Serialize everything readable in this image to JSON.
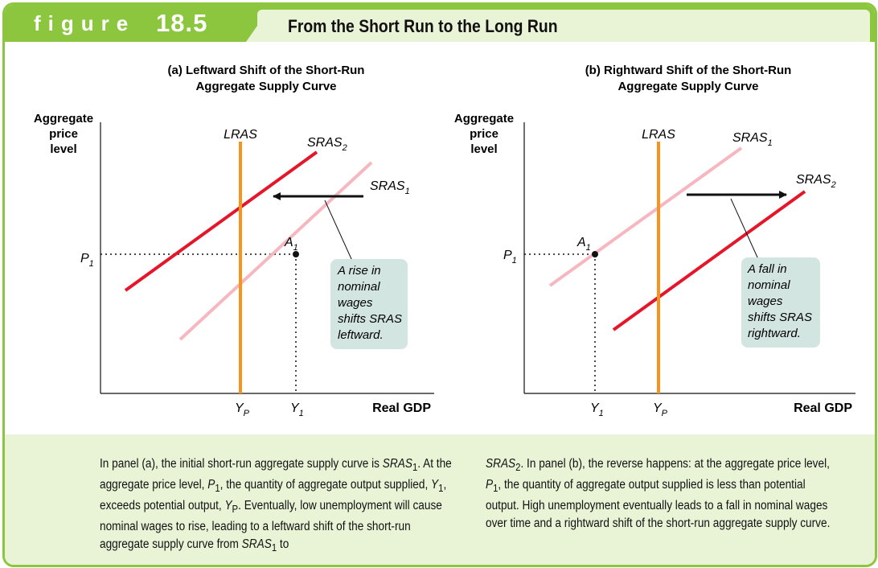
{
  "header": {
    "figure_word": "figure",
    "figure_number": "18.5",
    "title": "From the Short Run to the Long Run"
  },
  "panel_a": {
    "title_line1": "(a) Leftward Shift of the Short-Run",
    "title_line2": "Aggregate Supply Curve",
    "y_axis": [
      "Aggregate",
      "price",
      "level"
    ],
    "x_axis": "Real GDP",
    "lras": "LRAS",
    "sras_shifted": {
      "base": "SRAS",
      "sub": "2"
    },
    "sras_initial": {
      "base": "SRAS",
      "sub": "1"
    },
    "point": {
      "base": "A",
      "sub": "1"
    },
    "price": {
      "base": "P",
      "sub": "1"
    },
    "yp": {
      "base": "Y",
      "sub": "P"
    },
    "y1": {
      "base": "Y",
      "sub": "1"
    },
    "note": [
      "A rise in",
      "nominal",
      "wages",
      "shifts SRAS",
      "leftward."
    ]
  },
  "panel_b": {
    "title_line1": "(b) Rightward Shift of the Short-Run",
    "title_line2": "Aggregate Supply Curve",
    "y_axis": [
      "Aggregate",
      "price",
      "level"
    ],
    "x_axis": "Real GDP",
    "lras": "LRAS",
    "sras_initial": {
      "base": "SRAS",
      "sub": "1"
    },
    "sras_shifted": {
      "base": "SRAS",
      "sub": "2"
    },
    "point": {
      "base": "A",
      "sub": "1"
    },
    "price": {
      "base": "P",
      "sub": "1"
    },
    "y1": {
      "base": "Y",
      "sub": "1"
    },
    "yp": {
      "base": "Y",
      "sub": "P"
    },
    "note": [
      "A fall in",
      "nominal",
      "wages",
      "shifts SRAS",
      "rightward."
    ]
  },
  "colors": {
    "frame_green": "#8cc63f",
    "panel_bg": "#e9f3d6",
    "lras_orange": "#f7941d",
    "sras_red": "#e5162a",
    "sras_pink": "#f6b7c0",
    "note_box": "#d3e5e0"
  },
  "caption": {
    "left": {
      "p1": "In panel (a), the initial short-run aggregate supply curve is ",
      "p1_sras": "SRAS",
      "p1_sub": "1",
      "p1_end": ".",
      "p2": "At the aggregate price level, ",
      "p2_var": "P",
      "p2_sub": "1",
      "p2_mid": ", the quantity of aggregate output supplied, ",
      "p2_var2": "Y",
      "p2_sub2": "1",
      "p2_mid2": ", exceeds potential output, ",
      "p2_var3": "Y",
      "p2_sub3": "P",
      "p2_end": ". Eventually, low unemployment will cause nominal wages to rise, leading to a leftward shift of the short-run aggregate supply curve from ",
      "p2_sras": "SRAS",
      "p2_sras_sub": "1",
      "p2_to": " to"
    },
    "right": {
      "start_sras": "SRAS",
      "start_sub": "2",
      "text1": ". In panel (b), the reverse happens: at the aggregate price level, ",
      "var": "P",
      "var_sub": "1",
      "text2": ", the quantity of aggregate output supplied is less than potential output. High unemployment eventually leads to a fall in nominal wages over time and a rightward shift of the short-run aggregate supply curve."
    }
  }
}
